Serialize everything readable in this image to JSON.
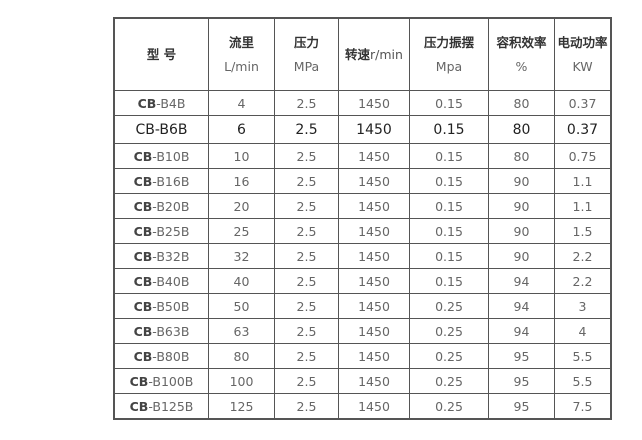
{
  "headers": [
    {
      "label": "型 号",
      "unit": ""
    },
    {
      "label": "流里",
      "unit": "L/min"
    },
    {
      "label": "压力",
      "unit": "MPa"
    },
    {
      "label": "转速",
      "unit": "r/min"
    },
    {
      "label": "压力振摆",
      "unit": "Mpa"
    },
    {
      "label": "容积效率",
      "unit": "%"
    },
    {
      "label": "电动功率",
      "unit": "KW"
    }
  ],
  "rows": [
    {
      "prefix": "CB",
      "suffix": "-B4B",
      "cells": [
        "4",
        "2.5",
        "1450",
        "0.15",
        "80",
        "0.37"
      ]
    },
    {
      "prefix": "CB",
      "suffix": "-B6B",
      "cells": [
        "6",
        "2.5",
        "1450",
        "0.15",
        "80",
        "0.37"
      ]
    },
    {
      "prefix": "CB",
      "suffix": "-B10B",
      "cells": [
        "10",
        "2.5",
        "1450",
        "0.15",
        "80",
        "0.75"
      ]
    },
    {
      "prefix": "CB",
      "suffix": "-B16B",
      "cells": [
        "16",
        "2.5",
        "1450",
        "0.15",
        "90",
        "1.1"
      ]
    },
    {
      "prefix": "CB",
      "suffix": "-B20B",
      "cells": [
        "20",
        "2.5",
        "1450",
        "0.15",
        "90",
        "1.1"
      ]
    },
    {
      "prefix": "CB",
      "suffix": "-B25B",
      "cells": [
        "25",
        "2.5",
        "1450",
        "0.15",
        "90",
        "1.5"
      ]
    },
    {
      "prefix": "CB",
      "suffix": "-B32B",
      "cells": [
        "32",
        "2.5",
        "1450",
        "0.15",
        "90",
        "2.2"
      ]
    },
    {
      "prefix": "CB",
      "suffix": "-B40B",
      "cells": [
        "40",
        "2.5",
        "1450",
        "0.15",
        "94",
        "2.2"
      ]
    },
    {
      "prefix": "CB",
      "suffix": "-B50B",
      "cells": [
        "50",
        "2.5",
        "1450",
        "0.25",
        "94",
        "3"
      ]
    },
    {
      "prefix": "CB",
      "suffix": "-B63B",
      "cells": [
        "63",
        "2.5",
        "1450",
        "0.25",
        "94",
        "4"
      ]
    },
    {
      "prefix": "CB",
      "suffix": "-B80B",
      "cells": [
        "80",
        "2.5",
        "1450",
        "0.25",
        "95",
        "5.5"
      ]
    },
    {
      "prefix": "CB",
      "suffix": "-B100B",
      "cells": [
        "100",
        "2.5",
        "1450",
        "0.25",
        "95",
        "5.5"
      ]
    },
    {
      "prefix": "CB",
      "suffix": "-B125B",
      "cells": [
        "125",
        "2.5",
        "1450",
        "0.25",
        "95",
        "7.5"
      ]
    }
  ]
}
